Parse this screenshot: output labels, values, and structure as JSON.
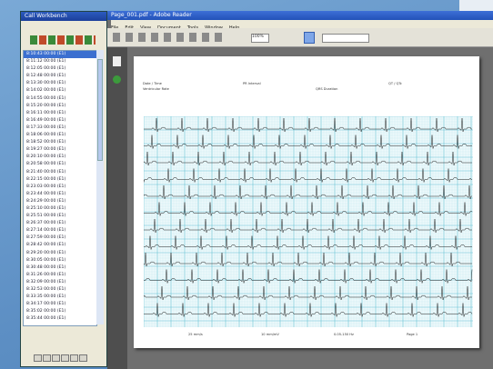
{
  "left_window": {
    "title": "Call Workbench",
    "items": [
      "8:10:43 00:00 (E1)",
      "8:11:12 00:00 (E1)",
      "8:12:05 00:00 (E1)",
      "8:12:48 00:00 (E1)",
      "8:13:30 00:00 (E1)",
      "8:14:02 00:00 (E1)",
      "8:14:55 00:00 (E1)",
      "8:15:20 00:00 (E1)",
      "8:16:11 00:00 (E1)",
      "8:16:49 00:00 (E1)",
      "8:17:33 00:00 (E1)",
      "8:18:06 00:00 (E1)",
      "8:18:52 00:00 (E1)",
      "8:19:27 00:00 (E1)",
      "8:20:10 00:00 (E1)",
      "8:20:58 00:00 (E1)",
      "8:21:40 00:00 (E1)",
      "8:22:15 00:00 (E1)",
      "8:23:03 00:00 (E1)",
      "8:23:44 00:00 (E1)",
      "8:24:29 00:00 (E1)",
      "8:25:10 00:00 (E1)",
      "8:25:51 00:00 (E1)",
      "8:26:37 00:00 (E1)",
      "8:27:14 00:00 (E1)",
      "8:27:59 00:00 (E1)",
      "8:28:42 00:00 (E1)",
      "8:29:20 00:00 (E1)",
      "8:30:05 00:00 (E1)",
      "8:30:48 00:00 (E1)",
      "8:31:26 00:00 (E1)",
      "8:32:09 00:00 (E1)",
      "8:32:53 00:00 (E1)",
      "8:33:35 00:00 (E1)",
      "8:34:17 00:00 (E1)",
      "8:35:02 00:00 (E1)",
      "8:35:44 00:00 (E1)"
    ]
  },
  "reader": {
    "title": "Page_001.pdf - Adobe Reader",
    "menu": [
      "File",
      "Edit",
      "View",
      "Document",
      "Tools",
      "Window",
      "Help"
    ],
    "zoom": "100%"
  },
  "ecg": {
    "header": [
      "Date / Time",
      "Ventricular Rate",
      "PR Interval",
      "QRS Duration",
      "QT / QTc"
    ],
    "footer": [
      "25 mm/s",
      "10 mm/mV",
      "0.05-150 Hz",
      "Page 1"
    ]
  }
}
